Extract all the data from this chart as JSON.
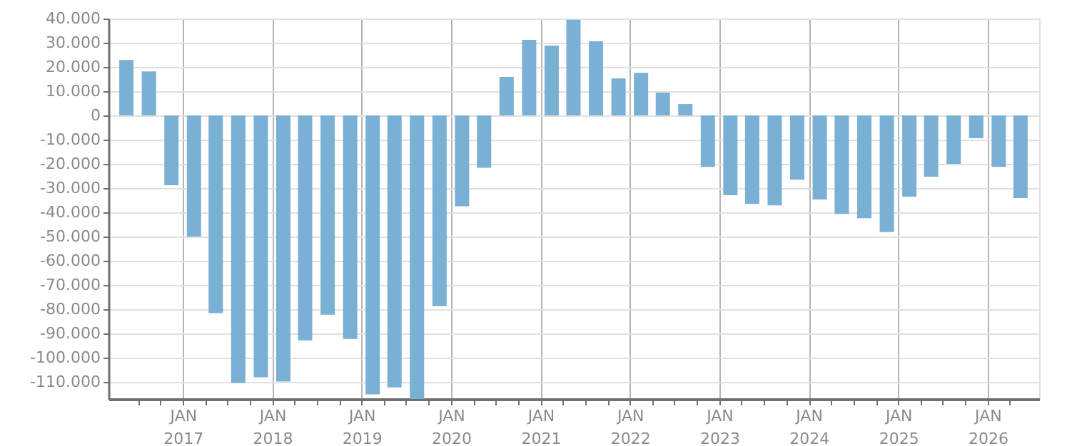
{
  "chart_data": {
    "type": "bar",
    "color": "#79b0d3",
    "x": [
      "2016-05-15",
      "2016-08-15",
      "2016-11-15",
      "2017-02-15",
      "2017-05-15",
      "2017-08-15",
      "2017-11-15",
      "2018-02-15",
      "2018-05-15",
      "2018-08-15",
      "2018-11-15",
      "2019-02-15",
      "2019-05-15",
      "2019-08-15",
      "2019-11-15",
      "2020-02-15",
      "2020-05-15",
      "2020-08-15",
      "2020-11-15",
      "2021-02-15",
      "2021-05-15",
      "2021-08-15",
      "2021-11-15",
      "2022-02-15",
      "2022-05-15",
      "2022-08-15",
      "2022-11-15",
      "2023-02-15",
      "2023-05-15",
      "2023-08-15",
      "2023-11-15",
      "2024-02-15",
      "2024-05-15",
      "2024-08-15",
      "2024-11-15",
      "2025-02-15",
      "2025-05-15",
      "2025-08-15",
      "2025-11-15",
      "2026-02-15",
      "2026-05-15"
    ],
    "values": [
      22900,
      18200,
      -28800,
      -50000,
      -81600,
      -110400,
      -108000,
      -109800,
      -92800,
      -82200,
      -92200,
      -115100,
      -112200,
      -117000,
      -78700,
      -37500,
      -21600,
      15900,
      31200,
      28800,
      39500,
      30600,
      15300,
      17600,
      9400,
      4700,
      -21200,
      -32900,
      -36500,
      -37100,
      -26500,
      -34700,
      -40600,
      -42400,
      -48100,
      -33500,
      -25300,
      -20000,
      -9400,
      -21200,
      -34100
    ],
    "xlim": [
      "2016-04-01",
      "2026-07-01"
    ],
    "xticks": [
      {
        "value": "2016-07-01",
        "label": null
      },
      {
        "value": "2016-10-01",
        "label": null
      },
      {
        "value": "2017-01-01",
        "label": "JAN 2017"
      },
      {
        "value": "2017-04-01",
        "label": null
      },
      {
        "value": "2017-07-01",
        "label": null
      },
      {
        "value": "2017-10-01",
        "label": null
      },
      {
        "value": "2018-01-01",
        "label": "JAN 2018"
      },
      {
        "value": "2018-04-01",
        "label": null
      },
      {
        "value": "2018-07-01",
        "label": null
      },
      {
        "value": "2018-10-01",
        "label": null
      },
      {
        "value": "2019-01-01",
        "label": "JAN 2019"
      },
      {
        "value": "2019-04-01",
        "label": null
      },
      {
        "value": "2019-07-01",
        "label": null
      },
      {
        "value": "2019-10-01",
        "label": null
      },
      {
        "value": "2020-01-01",
        "label": "JAN 2020"
      },
      {
        "value": "2020-04-01",
        "label": null
      },
      {
        "value": "2020-07-01",
        "label": null
      },
      {
        "value": "2020-10-01",
        "label": null
      },
      {
        "value": "2021-01-01",
        "label": "JAN 2021"
      },
      {
        "value": "2021-04-01",
        "label": null
      },
      {
        "value": "2021-07-01",
        "label": null
      },
      {
        "value": "2021-10-01",
        "label": null
      },
      {
        "value": "2022-01-01",
        "label": "JAN 2022"
      },
      {
        "value": "2022-04-01",
        "label": null
      },
      {
        "value": "2022-07-01",
        "label": null
      },
      {
        "value": "2022-10-01",
        "label": null
      },
      {
        "value": "2023-01-01",
        "label": "JAN 2023"
      },
      {
        "value": "2023-04-01",
        "label": null
      },
      {
        "value": "2023-07-01",
        "label": null
      },
      {
        "value": "2023-10-01",
        "label": null
      },
      {
        "value": "2024-01-01",
        "label": "JAN 2024"
      },
      {
        "value": "2024-04-01",
        "label": null
      },
      {
        "value": "2024-07-01",
        "label": null
      },
      {
        "value": "2024-10-01",
        "label": null
      },
      {
        "value": "2025-01-01",
        "label": "JAN 2025"
      },
      {
        "value": "2025-04-01",
        "label": null
      },
      {
        "value": "2025-07-01",
        "label": null
      },
      {
        "value": "2025-10-01",
        "label": null
      },
      {
        "value": "2026-01-01",
        "label": "JAN 2026"
      },
      {
        "value": "2026-04-01",
        "label": null
      }
    ],
    "ylim": [
      -117000,
      40000
    ],
    "yticks": [
      {
        "value": 40000,
        "label": "40.000"
      },
      {
        "value": 30000,
        "label": "30.000"
      },
      {
        "value": 20000,
        "label": "20.000"
      },
      {
        "value": 10000,
        "label": "10.000"
      },
      0,
      {
        "value": -10000,
        "label": "-10.000"
      },
      {
        "value": -20000,
        "label": "-20.000"
      },
      {
        "value": -30000,
        "label": "-30.000"
      },
      {
        "value": -40000,
        "label": "-40.000"
      },
      {
        "value": -50000,
        "label": "-50.000"
      },
      {
        "value": -60000,
        "label": "-60.000"
      },
      {
        "value": -70000,
        "label": "-70.000"
      },
      {
        "value": -80000,
        "label": "-80.000"
      },
      {
        "value": -90000,
        "label": "-90.000"
      },
      {
        "value": -100000,
        "label": "-100.000"
      },
      {
        "value": -110000,
        "label": "-110.000"
      }
    ],
    "grid": true
  }
}
